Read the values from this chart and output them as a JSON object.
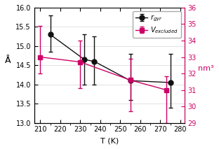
{
  "rgyr_T": [
    215,
    232,
    237,
    255,
    275
  ],
  "rgyr_vals": [
    15.3,
    14.65,
    14.6,
    14.1,
    14.05
  ],
  "rgyr_yerr_up": [
    0.5,
    0.65,
    0.65,
    0.7,
    0.75
  ],
  "rgyr_yerr_dn": [
    0.45,
    0.65,
    0.6,
    0.5,
    0.65
  ],
  "vex_T": [
    210,
    230,
    255,
    273
  ],
  "vex_vals": [
    33.0,
    32.7,
    31.6,
    31.0
  ],
  "vex_yerr_up": [
    1.9,
    1.3,
    1.3,
    0.85
  ],
  "vex_yerr_dn": [
    1.0,
    1.6,
    1.9,
    2.0
  ],
  "xlabel": "T (K)",
  "ylabel_left": "Å",
  "ylabel_right": "nm³",
  "legend_rgyr": "$r_{gyr}$",
  "legend_vex": "$V_{excluded}$",
  "xlim": [
    207,
    282
  ],
  "ylim_left": [
    13.0,
    16.0
  ],
  "ylim_right": [
    29.0,
    36.0
  ],
  "bg_color": "#ffffff",
  "line_color_black": "#111111",
  "line_color_red": "#cc0066",
  "tick_fontsize": 7,
  "label_fontsize": 8,
  "legend_fontsize": 7
}
